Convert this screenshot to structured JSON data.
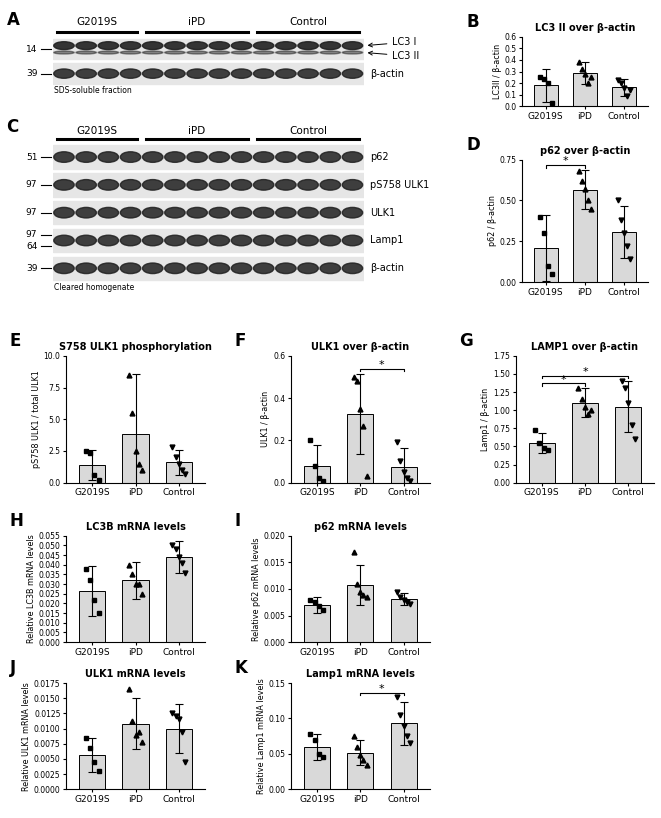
{
  "blots": [
    {
      "panel": "A",
      "groups": [
        {
          "name": "G2019S",
          "lanes": 4
        },
        {
          "name": "iPD",
          "lanes": 5
        },
        {
          "name": "Control",
          "lanes": 5
        }
      ],
      "rows": [
        {
          "labels": [
            "LC3 I",
            "LC3 II"
          ],
          "mw": [
            "14"
          ]
        },
        {
          "labels": [
            "β-actin"
          ],
          "mw": [
            "39"
          ]
        }
      ],
      "footer": "SDS-soluble fraction"
    },
    {
      "panel": "C",
      "groups": [
        {
          "name": "G2019S",
          "lanes": 4
        },
        {
          "name": "iPD",
          "lanes": 5
        },
        {
          "name": "Control",
          "lanes": 5
        }
      ],
      "rows": [
        {
          "labels": [
            "p62"
          ],
          "mw": [
            "51"
          ]
        },
        {
          "labels": [
            "pS758 ULK1"
          ],
          "mw": [
            "97"
          ]
        },
        {
          "labels": [
            "ULK1"
          ],
          "mw": [
            "97"
          ]
        },
        {
          "labels": [
            "Lamp1"
          ],
          "mw": [
            "97",
            "64"
          ]
        },
        {
          "labels": [
            "β-actin"
          ],
          "mw": [
            "39"
          ]
        }
      ],
      "footer": "Cleared homogenate"
    }
  ],
  "chart_data": [
    {
      "panel": "B",
      "type": "bar",
      "title": "LC3 II over β-actin",
      "y_label": "LC3II / β-actin",
      "categories": [
        "G2019S",
        "iPD",
        "Control"
      ],
      "values": [
        0.18,
        0.285,
        0.165
      ],
      "errors": [
        0.145,
        0.095,
        0.075
      ],
      "points": [
        [
          0.25,
          0.24,
          0.2,
          0.03
        ],
        [
          0.38,
          0.32,
          0.28,
          0.2,
          0.25
        ],
        [
          0.23,
          0.2,
          0.16,
          0.09,
          0.14
        ]
      ],
      "color": "#d9d9d9",
      "ylim": [
        0,
        0.6
      ],
      "yticks": [
        {
          "value": 0,
          "label": "0.0"
        },
        {
          "value": 0.1,
          "label": "0.1"
        },
        {
          "value": 0.2,
          "label": "0.2"
        },
        {
          "value": 0.3,
          "label": "0.3"
        },
        {
          "value": 0.4,
          "label": "0.4"
        },
        {
          "value": 0.5,
          "label": "0.5"
        },
        {
          "value": 0.6,
          "label": "0.6"
        }
      ],
      "annotations": []
    },
    {
      "panel": "D",
      "type": "bar",
      "title": "p62 over β-actin",
      "y_label": "p62 / β-actin",
      "categories": [
        "G2019S",
        "iPD",
        "Control"
      ],
      "values": [
        0.21,
        0.565,
        0.305
      ],
      "errors": [
        0.2,
        0.12,
        0.16
      ],
      "points": [
        [
          0.4,
          0.3,
          0.1,
          0.05
        ],
        [
          0.68,
          0.62,
          0.57,
          0.5,
          0.45
        ],
        [
          0.5,
          0.38,
          0.3,
          0.22,
          0.14
        ]
      ],
      "color": "#d9d9d9",
      "ylim": [
        0,
        0.75
      ],
      "yticks": [
        {
          "value": 0,
          "label": "0.00"
        },
        {
          "value": 0.25,
          "label": "0.25"
        },
        {
          "value": 0.5,
          "label": "0.50"
        },
        {
          "value": 0.75,
          "label": "0.75"
        }
      ],
      "annotations": [
        {
          "from": "G2019S",
          "to": "iPD",
          "text": "*"
        }
      ]
    },
    {
      "panel": "E",
      "type": "bar",
      "title": "S758 ULK1 phosphorylation",
      "y_label": "pS758 ULK1 / total ULK1",
      "categories": [
        "G2019S",
        "iPD",
        "Control"
      ],
      "values": [
        1.4,
        3.8,
        1.6
      ],
      "errors": [
        1.2,
        4.8,
        1.0
      ],
      "points": [
        [
          2.5,
          2.3,
          0.6,
          0.2
        ],
        [
          8.5,
          5.5,
          2.5,
          1.5,
          1.0
        ],
        [
          2.8,
          2.0,
          1.5,
          1.0,
          0.7
        ]
      ],
      "color": "#d9d9d9",
      "ylim": [
        0,
        10
      ],
      "yticks": [
        {
          "value": 0,
          "label": "0.0"
        },
        {
          "value": 2.5,
          "label": "2.5"
        },
        {
          "value": 5,
          "label": "5.0"
        },
        {
          "value": 7.5,
          "label": "7.5"
        },
        {
          "value": 10,
          "label": "10.0"
        }
      ],
      "annotations": []
    },
    {
      "panel": "F",
      "type": "bar",
      "title": "ULK1 over β-actin",
      "y_label": "ULK1 / β-actin",
      "categories": [
        "G2019S",
        "iPD",
        "Control"
      ],
      "values": [
        0.08,
        0.325,
        0.075
      ],
      "errors": [
        0.1,
        0.19,
        0.09
      ],
      "points": [
        [
          0.2,
          0.08,
          0.02,
          0.01
        ],
        [
          0.5,
          0.48,
          0.35,
          0.27,
          0.03
        ],
        [
          0.19,
          0.1,
          0.05,
          0.02,
          0.01
        ]
      ],
      "color": "#d9d9d9",
      "ylim": [
        0,
        0.6
      ],
      "yticks": [
        {
          "value": 0,
          "label": "0.0"
        },
        {
          "value": 0.2,
          "label": "0.2"
        },
        {
          "value": 0.4,
          "label": "0.4"
        },
        {
          "value": 0.6,
          "label": "0.6"
        }
      ],
      "annotations": [
        {
          "from": "iPD",
          "to": "Control",
          "text": "*"
        }
      ]
    },
    {
      "panel": "G",
      "type": "bar",
      "title": "LAMP1 over β-actin",
      "y_label": "Lamp1 / β-actin",
      "categories": [
        "G2019S",
        "iPD",
        "Control"
      ],
      "values": [
        0.55,
        1.1,
        1.05
      ],
      "errors": [
        0.14,
        0.2,
        0.35
      ],
      "points": [
        [
          0.72,
          0.55,
          0.48,
          0.45
        ],
        [
          1.3,
          1.15,
          1.05,
          0.95,
          1.0
        ],
        [
          1.4,
          1.3,
          1.1,
          0.8,
          0.6
        ]
      ],
      "color": "#d9d9d9",
      "ylim": [
        0,
        1.75
      ],
      "yticks": [
        {
          "value": 0,
          "label": "0.00"
        },
        {
          "value": 0.25,
          "label": "0.25"
        },
        {
          "value": 0.5,
          "label": "0.50"
        },
        {
          "value": 0.75,
          "label": "0.75"
        },
        {
          "value": 1.0,
          "label": "1.00"
        },
        {
          "value": 1.25,
          "label": "1.25"
        },
        {
          "value": 1.5,
          "label": "1.50"
        },
        {
          "value": 1.75,
          "label": "1.75"
        }
      ],
      "annotations": [
        {
          "from": "G2019S",
          "to": "iPD",
          "text": "*"
        },
        {
          "from": "G2019S",
          "to": "Control",
          "text": "*"
        }
      ]
    },
    {
      "panel": "H",
      "type": "bar",
      "title": "LC3B mRNA levels",
      "y_label": "Relative LC3B mRNA levels",
      "categories": [
        "G2019S",
        "iPD",
        "Control"
      ],
      "values": [
        0.0265,
        0.032,
        0.044
      ],
      "errors": [
        0.013,
        0.0095,
        0.0085
      ],
      "points": [
        [
          0.038,
          0.032,
          0.022,
          0.015
        ],
        [
          0.04,
          0.035,
          0.03,
          0.03,
          0.025
        ],
        [
          0.05,
          0.048,
          0.044,
          0.041,
          0.036
        ]
      ],
      "color": "#d9d9d9",
      "ylim": [
        0,
        0.055
      ],
      "yticks": [
        {
          "value": 0,
          "label": "0.000"
        },
        {
          "value": 0.005,
          "label": "0.005"
        },
        {
          "value": 0.01,
          "label": "0.010"
        },
        {
          "value": 0.015,
          "label": "0.015"
        },
        {
          "value": 0.02,
          "label": "0.020"
        },
        {
          "value": 0.025,
          "label": "0.025"
        },
        {
          "value": 0.03,
          "label": "0.030"
        },
        {
          "value": 0.035,
          "label": "0.035"
        },
        {
          "value": 0.04,
          "label": "0.040"
        },
        {
          "value": 0.045,
          "label": "0.045"
        },
        {
          "value": 0.05,
          "label": "0.050"
        },
        {
          "value": 0.055,
          "label": "0.055"
        }
      ],
      "annotations": []
    },
    {
      "panel": "I",
      "type": "bar",
      "title": "p62 mRNA levels",
      "y_label": "Relative p62 mRNA levels",
      "categories": [
        "G2019S",
        "iPD",
        "Control"
      ],
      "values": [
        0.007,
        0.0108,
        0.0081
      ],
      "errors": [
        0.0015,
        0.0038,
        0.0011
      ],
      "points": [
        [
          0.008,
          0.0075,
          0.0068,
          0.006
        ],
        [
          0.017,
          0.011,
          0.0095,
          0.0088,
          0.0085
        ],
        [
          0.0095,
          0.0085,
          0.008,
          0.0075,
          0.0072
        ]
      ],
      "color": "#d9d9d9",
      "ylim": [
        0,
        0.02
      ],
      "yticks": [
        {
          "value": 0,
          "label": "0.000"
        },
        {
          "value": 0.005,
          "label": "0.005"
        },
        {
          "value": 0.01,
          "label": "0.010"
        },
        {
          "value": 0.015,
          "label": "0.015"
        },
        {
          "value": 0.02,
          "label": "0.020"
        }
      ],
      "annotations": []
    },
    {
      "panel": "J",
      "type": "bar",
      "title": "ULK1 mRNA levels",
      "y_label": "Relative ULK1 mRNA levels",
      "categories": [
        "G2019S",
        "iPD",
        "Control"
      ],
      "values": [
        0.0057,
        0.0108,
        0.01
      ],
      "errors": [
        0.0028,
        0.0042,
        0.004
      ],
      "points": [
        [
          0.0085,
          0.0068,
          0.0045,
          0.003
        ],
        [
          0.0165,
          0.0112,
          0.009,
          0.0095,
          0.0078
        ],
        [
          0.0125,
          0.012,
          0.0115,
          0.0095,
          0.0045
        ]
      ],
      "color": "#d9d9d9",
      "ylim": [
        0,
        0.0175
      ],
      "yticks": [
        {
          "value": 0,
          "label": "0.0000"
        },
        {
          "value": 0.0025,
          "label": "0.0025"
        },
        {
          "value": 0.005,
          "label": "0.0050"
        },
        {
          "value": 0.0075,
          "label": "0.0075"
        },
        {
          "value": 0.01,
          "label": "0.0100"
        },
        {
          "value": 0.0125,
          "label": "0.0125"
        },
        {
          "value": 0.015,
          "label": "0.0150"
        },
        {
          "value": 0.0175,
          "label": "0.0175"
        }
      ],
      "annotations": []
    },
    {
      "panel": "K",
      "type": "bar",
      "title": "Lamp1 mRNA levels",
      "y_label": "Relative Lamp1 mRNA levels",
      "categories": [
        "G2019S",
        "iPD",
        "Control"
      ],
      "values": [
        0.06,
        0.052,
        0.093
      ],
      "errors": [
        0.018,
        0.018,
        0.03
      ],
      "points": [
        [
          0.078,
          0.07,
          0.05,
          0.045
        ],
        [
          0.075,
          0.06,
          0.048,
          0.042,
          0.035
        ],
        [
          0.13,
          0.105,
          0.09,
          0.075,
          0.065
        ]
      ],
      "color": "#d9d9d9",
      "ylim": [
        0,
        0.15
      ],
      "yticks": [
        {
          "value": 0,
          "label": "0.00"
        },
        {
          "value": 0.05,
          "label": "0.05"
        },
        {
          "value": 0.1,
          "label": "0.10"
        },
        {
          "value": 0.15,
          "label": "0.15"
        }
      ],
      "annotations": [
        {
          "from": "iPD",
          "to": "Control",
          "text": "*"
        }
      ]
    }
  ]
}
